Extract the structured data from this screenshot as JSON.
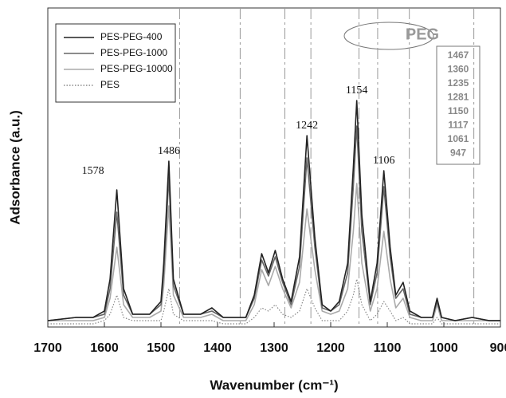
{
  "chart_data": {
    "type": "line",
    "xlabel": "Wavenumber (cm⁻¹)",
    "ylabel": "Adsorbance (a.u.)",
    "xlim": [
      1700,
      900
    ],
    "ylim": [
      0,
      1
    ],
    "xticks": [
      1700,
      1600,
      1500,
      1400,
      1300,
      1200,
      1100,
      1000,
      900
    ],
    "legend": "top-left",
    "x": [
      1700,
      1650,
      1620,
      1600,
      1590,
      1578,
      1566,
      1550,
      1520,
      1500,
      1495,
      1486,
      1478,
      1460,
      1430,
      1410,
      1390,
      1350,
      1335,
      1322,
      1310,
      1298,
      1285,
      1270,
      1255,
      1242,
      1228,
      1215,
      1200,
      1185,
      1170,
      1160,
      1154,
      1145,
      1130,
      1118,
      1106,
      1095,
      1085,
      1072,
      1060,
      1040,
      1020,
      1012,
      1004,
      980,
      950,
      920,
      900
    ],
    "series": [
      {
        "name": "PES-PEG-400",
        "color": "#222222",
        "line_style": "solid",
        "values": [
          0.02,
          0.03,
          0.03,
          0.05,
          0.15,
          0.43,
          0.12,
          0.04,
          0.04,
          0.08,
          0.2,
          0.52,
          0.15,
          0.04,
          0.04,
          0.06,
          0.03,
          0.03,
          0.1,
          0.23,
          0.17,
          0.24,
          0.15,
          0.08,
          0.22,
          0.6,
          0.28,
          0.07,
          0.05,
          0.08,
          0.2,
          0.5,
          0.71,
          0.35,
          0.08,
          0.2,
          0.49,
          0.25,
          0.1,
          0.14,
          0.05,
          0.03,
          0.03,
          0.09,
          0.03,
          0.02,
          0.03,
          0.02,
          0.02
        ]
      },
      {
        "name": "PES-PEG-1000",
        "color": "#666666",
        "line_style": "solid",
        "values": [
          0.02,
          0.03,
          0.03,
          0.04,
          0.12,
          0.36,
          0.1,
          0.04,
          0.04,
          0.07,
          0.17,
          0.47,
          0.13,
          0.04,
          0.04,
          0.05,
          0.03,
          0.03,
          0.09,
          0.21,
          0.16,
          0.22,
          0.14,
          0.07,
          0.19,
          0.53,
          0.25,
          0.06,
          0.05,
          0.07,
          0.17,
          0.44,
          0.63,
          0.3,
          0.07,
          0.17,
          0.44,
          0.22,
          0.09,
          0.12,
          0.04,
          0.03,
          0.03,
          0.08,
          0.03,
          0.02,
          0.03,
          0.02,
          0.02
        ]
      },
      {
        "name": "PES-PEG-10000",
        "color": "#aaaaaa",
        "line_style": "solid",
        "values": [
          0.02,
          0.02,
          0.02,
          0.03,
          0.09,
          0.25,
          0.07,
          0.03,
          0.03,
          0.05,
          0.13,
          0.38,
          0.1,
          0.03,
          0.03,
          0.04,
          0.02,
          0.02,
          0.07,
          0.18,
          0.13,
          0.19,
          0.12,
          0.06,
          0.14,
          0.37,
          0.18,
          0.05,
          0.04,
          0.05,
          0.12,
          0.3,
          0.45,
          0.2,
          0.05,
          0.12,
          0.3,
          0.15,
          0.06,
          0.09,
          0.03,
          0.02,
          0.02,
          0.07,
          0.02,
          0.02,
          0.02,
          0.02,
          0.02
        ]
      },
      {
        "name": "PES",
        "color": "#888888",
        "line_style": "dotted",
        "values": [
          0.01,
          0.01,
          0.01,
          0.02,
          0.04,
          0.1,
          0.03,
          0.02,
          0.02,
          0.02,
          0.05,
          0.12,
          0.04,
          0.02,
          0.02,
          0.02,
          0.01,
          0.01,
          0.03,
          0.06,
          0.05,
          0.07,
          0.04,
          0.03,
          0.05,
          0.12,
          0.06,
          0.02,
          0.02,
          0.02,
          0.05,
          0.1,
          0.15,
          0.07,
          0.02,
          0.04,
          0.08,
          0.05,
          0.02,
          0.03,
          0.01,
          0.01,
          0.01,
          0.03,
          0.01,
          0.01,
          0.01,
          0.01,
          0.01
        ]
      }
    ],
    "annotations": [
      {
        "text": "1578",
        "x": 1578
      },
      {
        "text": "1486",
        "x": 1486
      },
      {
        "text": "1242",
        "x": 1242
      },
      {
        "text": "1154",
        "x": 1154
      },
      {
        "text": "1106",
        "x": 1106
      }
    ],
    "peg_bands": {
      "label": "PEG",
      "values": [
        1467,
        1360,
        1235,
        1281,
        1150,
        1117,
        1061,
        947
      ]
    }
  }
}
